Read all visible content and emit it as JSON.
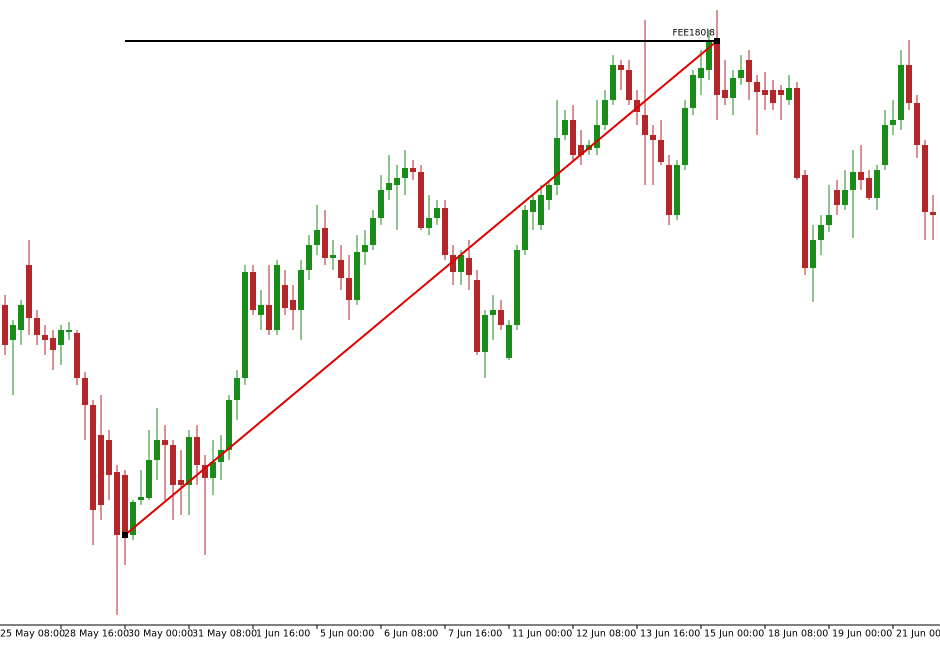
{
  "chart_data": {
    "type": "candlestick",
    "up_color": "#1a8c1a",
    "down_color": "#b5262b",
    "xlim": [
      0,
      118
    ],
    "ylim": [
      0,
      625
    ],
    "xticks": [
      {
        "value": 0,
        "label": "25 May 08:00"
      },
      {
        "value": 8,
        "label": "28 May 16:00"
      },
      {
        "value": 16,
        "label": "30 May 00:00"
      },
      {
        "value": 24,
        "label": "31 May 08:00"
      },
      {
        "value": 32,
        "label": "1 Jun 16:00"
      },
      {
        "value": 40,
        "label": "5 Jun 00:00"
      },
      {
        "value": 48,
        "label": "6 Jun 08:00"
      },
      {
        "value": 56,
        "label": "7 Jun 16:00"
      },
      {
        "value": 64,
        "label": "11 Jun 00:00"
      },
      {
        "value": 72,
        "label": "12 Jun 08:00"
      },
      {
        "value": 80,
        "label": "13 Jun 16:00"
      },
      {
        "value": 88,
        "label": "15 Jun 00:00"
      },
      {
        "value": 96,
        "label": "18 Jun 08:00"
      },
      {
        "value": 104,
        "label": "19 Jun 00:00"
      },
      {
        "value": 112,
        "label": "21 Jun 00:00"
      }
    ],
    "open": [
      320,
      285,
      295,
      360,
      307,
      290,
      287,
      280,
      293,
      292,
      247,
      220,
      190,
      185,
      153,
      150,
      90,
      125,
      127,
      165,
      185,
      180,
      145,
      140,
      188,
      160,
      147,
      163,
      175,
      225,
      247,
      353,
      310,
      320,
      295,
      340,
      325,
      315,
      355,
      380,
      397,
      367,
      365,
      347,
      325,
      373,
      380,
      407,
      435,
      440,
      447,
      457,
      453,
      397,
      407,
      417,
      370,
      353,
      367,
      345,
      273,
      310,
      315,
      267,
      300,
      375,
      413,
      400,
      425,
      440,
      490,
      505,
      480,
      475,
      477,
      500,
      525,
      560,
      555,
      525,
      510,
      490,
      485,
      460,
      410,
      460,
      517,
      547,
      555,
      585,
      535,
      527,
      547,
      565,
      543,
      535,
      535,
      535,
      525,
      537,
      450,
      357,
      385,
      400,
      435,
      420,
      435,
      453,
      447,
      427,
      460,
      500,
      505,
      560,
      522,
      480,
      413
    ],
    "high": [
      330,
      305,
      325,
      385,
      315,
      300,
      295,
      300,
      303,
      295,
      253,
      225,
      230,
      195,
      160,
      155,
      125,
      155,
      195,
      217,
      200,
      185,
      175,
      195,
      200,
      170,
      185,
      190,
      230,
      255,
      360,
      360,
      335,
      360,
      365,
      355,
      340,
      365,
      390,
      420,
      415,
      385,
      380,
      370,
      390,
      395,
      415,
      450,
      470,
      460,
      475,
      465,
      460,
      430,
      425,
      425,
      380,
      375,
      385,
      355,
      315,
      330,
      325,
      305,
      380,
      420,
      430,
      440,
      445,
      525,
      515,
      520,
      495,
      485,
      525,
      535,
      570,
      565,
      565,
      535,
      605,
      500,
      505,
      470,
      465,
      525,
      555,
      575,
      595,
      615,
      565,
      555,
      570,
      575,
      550,
      553,
      545,
      540,
      550,
      543,
      455,
      400,
      410,
      440,
      445,
      455,
      475,
      480,
      455,
      460,
      515,
      525,
      575,
      585,
      530,
      485,
      430
    ],
    "low": [
      270,
      230,
      280,
      290,
      280,
      270,
      255,
      260,
      285,
      240,
      185,
      80,
      105,
      125,
      10,
      60,
      85,
      120,
      125,
      145,
      125,
      105,
      110,
      110,
      140,
      70,
      130,
      145,
      165,
      205,
      240,
      310,
      295,
      290,
      290,
      310,
      295,
      285,
      345,
      370,
      360,
      355,
      335,
      305,
      320,
      360,
      375,
      400,
      425,
      395,
      430,
      445,
      395,
      390,
      400,
      365,
      340,
      340,
      335,
      270,
      247,
      285,
      295,
      265,
      295,
      370,
      395,
      395,
      415,
      430,
      485,
      465,
      460,
      470,
      470,
      495,
      520,
      535,
      520,
      500,
      440,
      440,
      460,
      400,
      405,
      455,
      510,
      530,
      545,
      505,
      520,
      510,
      540,
      525,
      490,
      515,
      515,
      505,
      520,
      445,
      350,
      323,
      370,
      393,
      410,
      415,
      387,
      435,
      425,
      415,
      455,
      490,
      495,
      515,
      467,
      385,
      385
    ],
    "close": [
      280,
      300,
      320,
      307,
      290,
      285,
      275,
      295,
      295,
      247,
      220,
      115,
      120,
      150,
      90,
      90,
      123,
      128,
      165,
      185,
      180,
      140,
      140,
      188,
      160,
      147,
      163,
      175,
      225,
      247,
      353,
      315,
      320,
      295,
      360,
      317,
      315,
      355,
      380,
      395,
      367,
      370,
      347,
      325,
      373,
      380,
      407,
      435,
      442,
      447,
      457,
      453,
      397,
      407,
      417,
      370,
      353,
      370,
      350,
      273,
      310,
      315,
      300,
      300,
      375,
      415,
      425,
      430,
      440,
      487,
      505,
      470,
      470,
      480,
      500,
      525,
      560,
      555,
      525,
      513,
      490,
      485,
      463,
      410,
      460,
      517,
      550,
      557,
      585,
      530,
      527,
      547,
      555,
      543,
      533,
      530,
      522,
      530,
      537,
      447,
      357,
      385,
      400,
      410,
      420,
      435,
      453,
      445,
      427,
      455,
      500,
      505,
      560,
      522,
      480,
      413,
      410
    ],
    "trendline": {
      "x": [
        16,
        90
      ],
      "y": [
        90,
        584
      ]
    },
    "hline": {
      "value": 584,
      "x": [
        16,
        90
      ],
      "label": "FEE180|8"
    }
  }
}
